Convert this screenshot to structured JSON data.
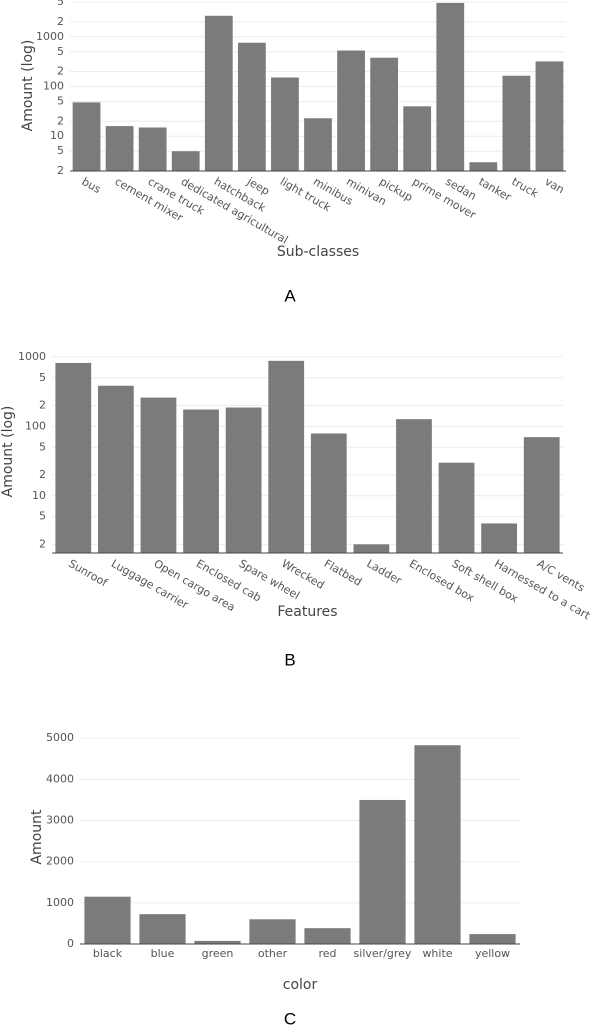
{
  "chart_data": [
    {
      "type": "bar",
      "label": "A",
      "x_label": "Sub-classes",
      "y_label": "Amount (log)",
      "log_y": true,
      "grid": true,
      "color": "#7b7b7b",
      "categories": [
        "bus",
        "cement mixer",
        "crane truck",
        "dedicated agricultural",
        "hatchback",
        "jeep",
        "light truck",
        "minibus",
        "minivan",
        "pickup",
        "prime mover",
        "sedan",
        "tanker",
        "truck",
        "van"
      ],
      "values": [
        48,
        16,
        15,
        5,
        2650,
        760,
        152,
        23,
        530,
        380,
        40,
        4800,
        3,
        165,
        320
      ],
      "ylim": [
        2,
        5500
      ],
      "yticks": [
        2,
        5,
        10,
        {
          "value": 20,
          "label": "2"
        },
        {
          "value": 50,
          "label": "5"
        },
        100,
        {
          "value": 200,
          "label": "2"
        },
        {
          "value": 500,
          "label": "5"
        },
        1000,
        {
          "value": 2000,
          "label": "2"
        },
        {
          "value": 5000,
          "label": "5"
        }
      ]
    },
    {
      "type": "bar",
      "label": "B",
      "x_label": "Features",
      "y_label": "Amount (log)",
      "log_y": true,
      "grid": true,
      "color": "#7b7b7b",
      "categories": [
        "Sunroof",
        "Luggage carrier",
        "Open cargo area",
        "Enclosed cab",
        "Spare wheel",
        "Wrecked",
        "Flatbed",
        "Ladder",
        "Enclosed box",
        "Soft shell box",
        "Harnessed to a cart",
        "A/C vents"
      ],
      "values": [
        820,
        385,
        260,
        175,
        187,
        880,
        79,
        2,
        127,
        30,
        4,
        70
      ],
      "ylim": [
        1.5,
        1260
      ],
      "yticks": [
        2,
        5,
        10,
        {
          "value": 20,
          "label": "2"
        },
        {
          "value": 50,
          "label": "5"
        },
        100,
        {
          "value": 200,
          "label": "2"
        },
        {
          "value": 500,
          "label": "5"
        },
        1000
      ]
    },
    {
      "type": "bar",
      "label": "C",
      "x_label": "color",
      "y_label": "Amount",
      "log_y": false,
      "grid": true,
      "color": "#7b7b7b",
      "categories": [
        "black",
        "blue",
        "green",
        "other",
        "red",
        "silver/grey",
        "white",
        "yellow"
      ],
      "values": [
        1150,
        725,
        75,
        600,
        385,
        3500,
        4830,
        240
      ],
      "ylim": [
        0,
        5200
      ],
      "yticks": [
        0,
        1000,
        2000,
        3000,
        4000,
        5000
      ]
    }
  ]
}
